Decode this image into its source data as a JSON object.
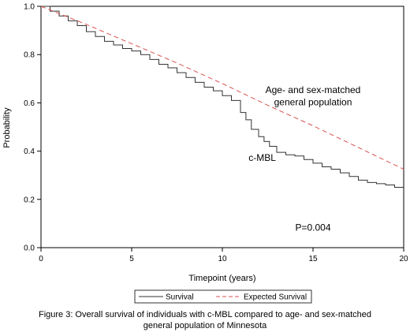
{
  "chart_data": {
    "type": "line",
    "xlabel": "Timepoint (years)",
    "ylabel": "Probability",
    "xlim": [
      0,
      20
    ],
    "ylim": [
      0.0,
      1.0
    ],
    "x_ticks": [
      "0",
      "5",
      "10",
      "15",
      "20"
    ],
    "y_ticks": [
      "0.0",
      "0.2",
      "0.4",
      "0.6",
      "0.8",
      "1.0"
    ],
    "grid": false,
    "legend_position": "bottom",
    "series": [
      {
        "name": "Survival",
        "color": "#333333",
        "style": "solid-step",
        "x": [
          0,
          0.5,
          1,
          1.5,
          2,
          2.5,
          3,
          3.5,
          4,
          4.5,
          5,
          5.5,
          6,
          6.5,
          7,
          7.5,
          8,
          8.5,
          9,
          9.5,
          10,
          10.5,
          11,
          11.3,
          11.6,
          12,
          12.3,
          12.6,
          13,
          13.5,
          14,
          14.5,
          15,
          15.5,
          16,
          16.5,
          17,
          17.5,
          18,
          18.5,
          19,
          19.5,
          20
        ],
        "y": [
          1.0,
          0.98,
          0.96,
          0.94,
          0.92,
          0.895,
          0.875,
          0.855,
          0.84,
          0.825,
          0.815,
          0.8,
          0.78,
          0.76,
          0.745,
          0.725,
          0.705,
          0.685,
          0.665,
          0.65,
          0.63,
          0.61,
          0.56,
          0.53,
          0.49,
          0.46,
          0.44,
          0.42,
          0.395,
          0.385,
          0.38,
          0.365,
          0.35,
          0.335,
          0.325,
          0.31,
          0.295,
          0.28,
          0.27,
          0.265,
          0.26,
          0.25,
          0.25
        ]
      },
      {
        "name": "Expected Survival",
        "color": "#d9534f",
        "style": "dashed",
        "x": [
          0,
          2.5,
          5,
          7.5,
          10,
          12.5,
          15,
          17.5,
          20
        ],
        "y": [
          1.0,
          0.925,
          0.845,
          0.765,
          0.68,
          0.59,
          0.505,
          0.415,
          0.325
        ]
      }
    ],
    "annotations": [
      {
        "text": "Age- and sex-matched",
        "x": 15,
        "y": 0.64
      },
      {
        "text": "general population",
        "x": 15,
        "y": 0.59
      },
      {
        "text": "c-MBL",
        "x": 12.2,
        "y": 0.36
      },
      {
        "text": "P=0.004",
        "x": 15,
        "y": 0.07
      }
    ]
  },
  "legend": {
    "items": [
      {
        "label": "Survival",
        "color": "#333333",
        "style": "solid"
      },
      {
        "label": "Expected Survival",
        "color": "#d9534f",
        "style": "dashed"
      }
    ]
  },
  "caption": {
    "line1": "Figure 3: Overall survival of individuals  with c-MBL compared to age- and sex-matched",
    "line2": "general population  of Minnesota"
  }
}
